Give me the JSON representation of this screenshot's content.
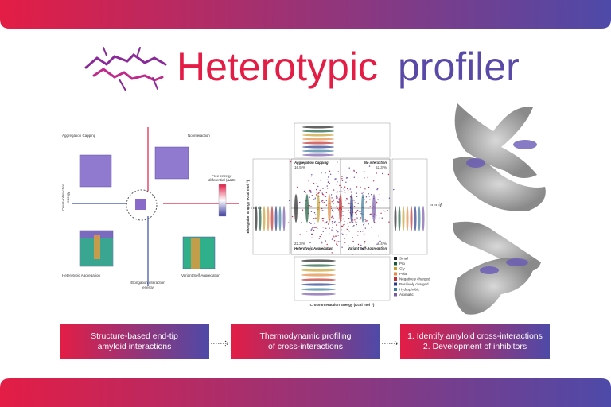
{
  "header": {
    "title_part1": "Heterotypic",
    "title_part2": "profiler"
  },
  "scheme": {
    "quadrants": [
      "Aggregation Capping",
      "No interaction",
      "Heterotypic Aggregation",
      "Variant Self-Aggregation"
    ],
    "scale_label": [
      "Free energy",
      "differential (ΔΔG)"
    ],
    "y_axis": [
      "Cross-interaction",
      "energy"
    ],
    "x_axis": [
      "Elongation interaction",
      "energy"
    ]
  },
  "plot": {
    "quadrants": [
      {
        "label": "Aggregation Capping",
        "percent": "16.5 %"
      },
      {
        "label": "No interaction",
        "percent": "52.3 %"
      },
      {
        "label": "Heterotypic Aggregation",
        "percent": "22.3 %"
      },
      {
        "label": "Variant Self-Aggregation",
        "percent": "8.4 %"
      }
    ],
    "y_axis": "Elongation Energy (Kcal mol⁻¹)",
    "x_axis": "Cross-Interaction Energy (Kcal mol⁻¹)",
    "legend": [
      "Small",
      "Pro",
      "Gly",
      "Polar",
      "Negatively charged",
      "Positively charged",
      "Hydrophobic",
      "Aromatic"
    ]
  },
  "steps": [
    {
      "lines": [
        "Structure-based end-tip",
        "amyloid interactions"
      ]
    },
    {
      "lines": [
        "Thermodynamic profiling",
        "of cross-interactions"
      ]
    },
    {
      "lines": [
        "1. Identify amyloid cross-interactions",
        "2. Development of inhibitors"
      ]
    }
  ]
}
